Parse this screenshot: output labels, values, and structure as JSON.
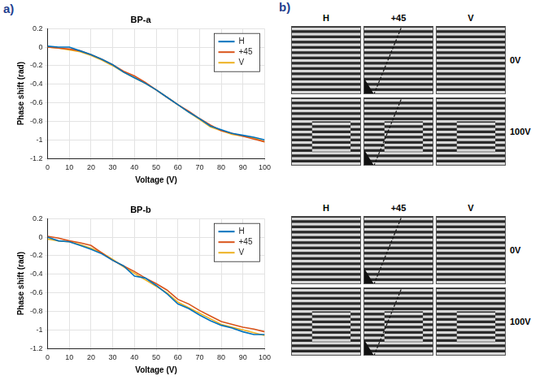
{
  "chart_data": [
    {
      "type": "line",
      "title": "BP-a",
      "x_label": "Voltage (V)",
      "y_label": "Phase shift (rad)",
      "x": [
        0,
        5,
        10,
        15,
        20,
        25,
        30,
        35,
        40,
        45,
        50,
        55,
        60,
        65,
        70,
        75,
        80,
        85,
        90,
        95,
        100
      ],
      "xlim": [
        0,
        100
      ],
      "xticks": [
        0,
        10,
        20,
        30,
        40,
        50,
        60,
        70,
        80,
        90,
        100
      ],
      "ylim": [
        -1.2,
        0.2
      ],
      "yticks": [
        -1.2,
        -1,
        -0.8,
        -0.6,
        -0.4,
        -0.2,
        0,
        0.2
      ],
      "grid": true,
      "legend": "northeast",
      "series": [
        {
          "name": "H",
          "color": "#0072bd",
          "values": [
            0.01,
            0.0,
            0.0,
            -0.04,
            -0.08,
            -0.13,
            -0.19,
            -0.27,
            -0.33,
            -0.39,
            -0.46,
            -0.54,
            -0.62,
            -0.7,
            -0.77,
            -0.85,
            -0.89,
            -0.93,
            -0.95,
            -0.97,
            -1.0
          ]
        },
        {
          "name": "+45",
          "color": "#d95319",
          "values": [
            0.0,
            -0.01,
            -0.02,
            -0.04,
            -0.08,
            -0.13,
            -0.19,
            -0.26,
            -0.31,
            -0.38,
            -0.46,
            -0.54,
            -0.62,
            -0.69,
            -0.77,
            -0.84,
            -0.9,
            -0.93,
            -0.96,
            -0.99,
            -1.02
          ]
        },
        {
          "name": "V",
          "color": "#edb120",
          "values": [
            0.0,
            -0.01,
            -0.03,
            -0.05,
            -0.09,
            -0.14,
            -0.2,
            -0.27,
            -0.33,
            -0.39,
            -0.46,
            -0.54,
            -0.62,
            -0.7,
            -0.78,
            -0.86,
            -0.9,
            -0.94,
            -0.96,
            -0.98,
            -1.02
          ]
        }
      ]
    },
    {
      "type": "line",
      "title": "BP-b",
      "x_label": "Voltage (V)",
      "y_label": "Phase shift (rad)",
      "x": [
        0,
        5,
        10,
        15,
        20,
        25,
        30,
        35,
        40,
        45,
        50,
        55,
        60,
        65,
        70,
        75,
        80,
        85,
        90,
        95,
        100
      ],
      "xlim": [
        0,
        100
      ],
      "xticks": [
        0,
        10,
        20,
        30,
        40,
        50,
        60,
        70,
        80,
        90,
        100
      ],
      "ylim": [
        -1.2,
        0.2
      ],
      "yticks": [
        -1.2,
        -1,
        -0.8,
        -0.6,
        -0.4,
        -0.2,
        0,
        0.2
      ],
      "grid": true,
      "legend": "northeast",
      "series": [
        {
          "name": "H",
          "color": "#0072bd",
          "values": [
            0.0,
            -0.04,
            -0.05,
            -0.09,
            -0.13,
            -0.18,
            -0.25,
            -0.31,
            -0.42,
            -0.44,
            -0.52,
            -0.61,
            -0.72,
            -0.77,
            -0.84,
            -0.9,
            -0.95,
            -0.98,
            -1.02,
            -1.05,
            -1.05
          ]
        },
        {
          "name": "+45",
          "color": "#d95319",
          "values": [
            0.01,
            -0.01,
            -0.04,
            -0.06,
            -0.09,
            -0.17,
            -0.25,
            -0.31,
            -0.37,
            -0.44,
            -0.5,
            -0.57,
            -0.67,
            -0.72,
            -0.79,
            -0.85,
            -0.91,
            -0.94,
            -0.97,
            -0.99,
            -1.02
          ]
        },
        {
          "name": "V",
          "color": "#edb120",
          "values": [
            -0.02,
            -0.04,
            -0.05,
            -0.08,
            -0.12,
            -0.17,
            -0.24,
            -0.32,
            -0.39,
            -0.46,
            -0.53,
            -0.6,
            -0.7,
            -0.76,
            -0.82,
            -0.88,
            -0.94,
            -0.97,
            -1.0,
            -1.03,
            -1.06
          ]
        }
      ]
    }
  ],
  "panel_labels": [
    "a)",
    "b)"
  ],
  "interferograms": [
    {
      "columns": [
        "H",
        "+45",
        "V"
      ],
      "rows": [
        "0V",
        "100V"
      ]
    },
    {
      "columns": [
        "H",
        "+45",
        "V"
      ],
      "rows": [
        "0V",
        "100V"
      ]
    }
  ]
}
